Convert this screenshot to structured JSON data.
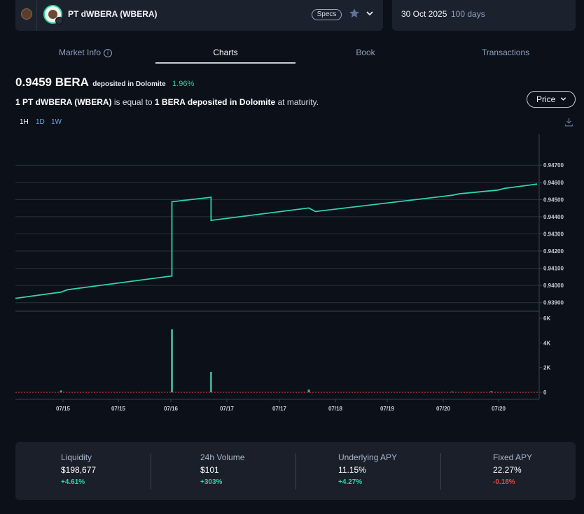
{
  "header": {
    "token_name": "PT dWBERA (WBERA)",
    "specs_label": "Specs",
    "icons": [
      "bera-bear-icon",
      "token-avatar-icon",
      "star-icon",
      "chevron-down-icon"
    ]
  },
  "maturity": {
    "date": "30 Oct 2025",
    "days": "100 days"
  },
  "tabs": [
    {
      "label": "Market Info",
      "active": false,
      "has_info_icon": true
    },
    {
      "label": "Charts",
      "active": true
    },
    {
      "label": "Book",
      "active": false
    },
    {
      "label": "Transactions",
      "active": false
    }
  ],
  "price": {
    "value": "0.9459 BERA",
    "unit_note": "deposited in Dolomite",
    "change": "1.96%"
  },
  "equivalence": {
    "part1": "1 PT dWBERA (WBERA)",
    "part2": " is equal to ",
    "part3": "1 BERA deposited in Dolomite",
    "part4": " at maturity."
  },
  "metric_select": {
    "selected": "Price"
  },
  "intervals": [
    {
      "label": "1H",
      "active": true
    },
    {
      "label": "1D",
      "active": false
    },
    {
      "label": "1W",
      "active": false
    }
  ],
  "colors": {
    "accent": "#2dd4a7",
    "line": "#2fd3b0",
    "volume_bar": "#3fa88b",
    "negative": "#ef4444",
    "panel": "#1c222d",
    "background": "#0b1019"
  },
  "chart_data": [
    {
      "type": "line",
      "title": "",
      "xlabel": "",
      "ylabel": "",
      "ylim": [
        0.9385,
        0.9488
      ],
      "grid": true,
      "y_ticks": [
        "0.94700",
        "0.94600",
        "0.94500",
        "0.94400",
        "0.94300",
        "0.94200",
        "0.94100",
        "0.94000",
        "0.93900"
      ],
      "series": [
        {
          "values": [
            [
              0,
              0.93925
            ],
            [
              7,
              0.93961
            ],
            [
              8,
              0.93975
            ],
            [
              24,
              0.94055
            ],
            [
              24,
              0.94487
            ],
            [
              30,
              0.94513
            ],
            [
              30,
              0.94379
            ],
            [
              45,
              0.94451
            ],
            [
              46,
              0.9443
            ],
            [
              67,
              0.94525
            ],
            [
              68,
              0.94533
            ],
            [
              74,
              0.94555
            ],
            [
              75,
              0.94565
            ],
            [
              80,
              0.9459
            ]
          ]
        }
      ]
    },
    {
      "type": "bar",
      "title": "",
      "xlabel": "",
      "ylabel": "",
      "ylim": [
        0,
        6000
      ],
      "y_ticks": [
        "6K",
        "4K",
        "2K",
        "0"
      ],
      "series": [
        {
          "values": [
            [
              7,
              150
            ],
            [
              24,
              5100
            ],
            [
              30,
              1650
            ],
            [
              45,
              230
            ],
            [
              67,
              60
            ],
            [
              73,
              90
            ]
          ]
        }
      ],
      "x_ticks": [
        "07/15",
        "07/15",
        "07/16",
        "07/17",
        "07/17",
        "07/18",
        "07/19",
        "07/20",
        "07/20"
      ]
    }
  ],
  "stats": [
    {
      "label": "Liquidity",
      "value": "$198,677",
      "change": "+4.61%",
      "direction": "up"
    },
    {
      "label": "24h Volume",
      "value": "$101",
      "change": "+303%",
      "direction": "up"
    },
    {
      "label": "Underlying APY",
      "value": "11.15%",
      "change": "+4.27%",
      "direction": "up"
    },
    {
      "label": "Fixed APY",
      "value": "22.27%",
      "change": "-0.18%",
      "direction": "down"
    }
  ]
}
